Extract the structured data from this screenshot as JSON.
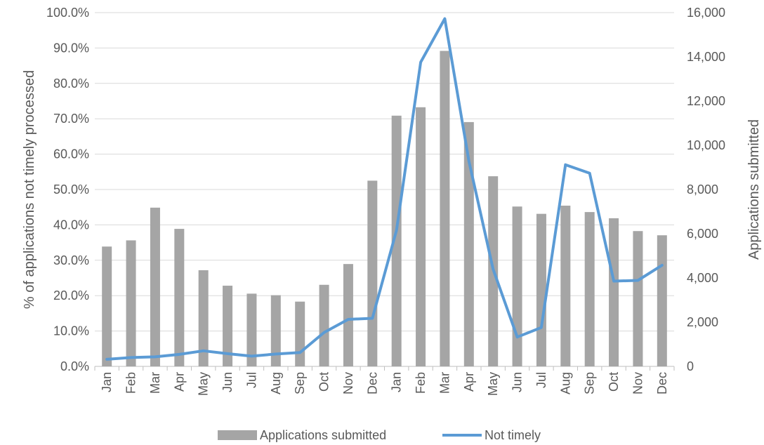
{
  "chart_data": {
    "type": "bar+line",
    "categories": [
      "Jan",
      "Feb",
      "Mar",
      "Apr",
      "May",
      "Jun",
      "Jul",
      "Aug",
      "Sep",
      "Oct",
      "Nov",
      "Dec",
      "Jan",
      "Feb",
      "Mar",
      "Apr",
      "May",
      "Jun",
      "Jul",
      "Aug",
      "Sep",
      "Oct",
      "Nov",
      "Dec"
    ],
    "series": [
      {
        "name": "Applications submitted",
        "type": "bar",
        "axis": "right",
        "color": "#a5a5a5",
        "values": [
          5420,
          5700,
          7180,
          6220,
          4350,
          3650,
          3290,
          3220,
          2930,
          3690,
          4630,
          8400,
          11340,
          11720,
          14270,
          11050,
          8600,
          7230,
          6900,
          7270,
          6980,
          6700,
          6120,
          5930
        ]
      },
      {
        "name": "Not timely",
        "type": "line",
        "axis": "left",
        "color": "#5b9bd5",
        "values": [
          2.0,
          2.5,
          2.7,
          3.4,
          4.4,
          3.6,
          2.9,
          3.5,
          3.9,
          9.6,
          13.3,
          13.6,
          38.5,
          86.0,
          98.3,
          58.0,
          27.5,
          8.3,
          11.0,
          57.0,
          54.6,
          24.1,
          24.3,
          28.6
        ]
      }
    ],
    "ylabel_left": "% of applications not timely processed",
    "ylabel_right": "Applications submitted",
    "ylim_left": [
      0,
      100
    ],
    "ylim_right": [
      0,
      16000
    ],
    "yticks_left": [
      "0.0%",
      "10.0%",
      "20.0%",
      "30.0%",
      "40.0%",
      "50.0%",
      "60.0%",
      "70.0%",
      "80.0%",
      "90.0%",
      "100.0%"
    ],
    "yticks_right": [
      "0",
      "2,000",
      "4,000",
      "6,000",
      "8,000",
      "10,000",
      "12,000",
      "14,000",
      "16,000"
    ],
    "grid": true,
    "legend_position": "bottom"
  }
}
